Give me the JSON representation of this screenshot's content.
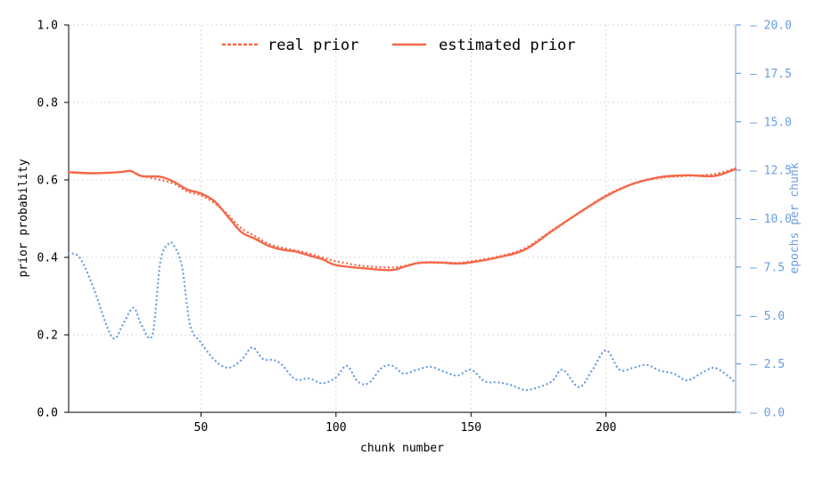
{
  "chart_data": {
    "type": "line",
    "xlabel": "chunk number",
    "ylabel": "prior probability",
    "ylabel_right": "epochs per chunk",
    "xlim": [
      1,
      248
    ],
    "ylim": [
      0.0,
      1.0
    ],
    "ylim_right": [
      0.0,
      20.0
    ],
    "x_ticks": [
      "50",
      "100",
      "150",
      "200"
    ],
    "y_ticks_left": [
      "0.0",
      "0.2",
      "0.4",
      "0.6",
      "0.8",
      "1.0"
    ],
    "y_ticks_right": [
      "0.0",
      "2.5",
      "5.0",
      "7.5",
      "10.0",
      "12.5",
      "15.0",
      "17.5",
      "20.0"
    ],
    "grid": true,
    "legend_position": "top-center",
    "colors": {
      "prior": "#f4694a",
      "epochs": "#6a9ee0"
    },
    "series": [
      {
        "name": "real prior",
        "axis": "left",
        "style": "dotted",
        "x": [
          1,
          10,
          20,
          24,
          28,
          35,
          40,
          45,
          50,
          55,
          60,
          65,
          70,
          75,
          80,
          85,
          90,
          95,
          100,
          110,
          120,
          125,
          130,
          135,
          140,
          145,
          150,
          160,
          170,
          180,
          190,
          200,
          210,
          220,
          230,
          240,
          248
        ],
        "values": [
          0.62,
          0.618,
          0.62,
          0.622,
          0.61,
          0.6,
          0.59,
          0.57,
          0.56,
          0.54,
          0.51,
          0.475,
          0.455,
          0.435,
          0.425,
          0.418,
          0.41,
          0.4,
          0.39,
          0.378,
          0.374,
          0.378,
          0.385,
          0.388,
          0.387,
          0.386,
          0.39,
          0.402,
          0.424,
          0.47,
          0.515,
          0.56,
          0.59,
          0.605,
          0.61,
          0.615,
          0.63
        ]
      },
      {
        "name": "estimated prior",
        "axis": "left",
        "style": "solid",
        "x": [
          1,
          10,
          20,
          24,
          28,
          35,
          40,
          45,
          50,
          55,
          60,
          65,
          70,
          75,
          80,
          85,
          90,
          95,
          100,
          110,
          120,
          125,
          130,
          135,
          140,
          145,
          150,
          160,
          170,
          180,
          190,
          200,
          210,
          220,
          230,
          240,
          248
        ],
        "values": [
          0.62,
          0.617,
          0.62,
          0.623,
          0.61,
          0.608,
          0.595,
          0.575,
          0.565,
          0.545,
          0.505,
          0.465,
          0.448,
          0.43,
          0.42,
          0.415,
          0.405,
          0.395,
          0.38,
          0.372,
          0.367,
          0.375,
          0.385,
          0.387,
          0.386,
          0.384,
          0.387,
          0.4,
          0.42,
          0.468,
          0.515,
          0.558,
          0.59,
          0.607,
          0.612,
          0.61,
          0.628
        ]
      },
      {
        "name": "epochs per chunk",
        "axis": "right",
        "style": "dotted",
        "x": [
          1,
          5,
          10,
          15,
          18,
          21,
          25,
          28,
          32,
          35,
          38,
          40,
          43,
          46,
          50,
          55,
          60,
          65,
          69,
          73,
          77,
          80,
          85,
          90,
          95,
          100,
          104,
          108,
          112,
          117,
          121,
          125,
          130,
          135,
          140,
          145,
          150,
          155,
          160,
          165,
          170,
          175,
          180,
          184,
          190,
          195,
          200,
          205,
          210,
          215,
          220,
          225,
          230,
          235,
          240,
          245,
          248
        ],
        "values": [
          8.2,
          8.0,
          6.5,
          4.5,
          3.8,
          4.5,
          5.4,
          4.5,
          4.0,
          7.8,
          8.7,
          8.6,
          7.5,
          4.5,
          3.6,
          2.7,
          2.3,
          2.7,
          3.35,
          2.75,
          2.7,
          2.45,
          1.7,
          1.75,
          1.5,
          1.8,
          2.4,
          1.6,
          1.5,
          2.3,
          2.4,
          2.0,
          2.2,
          2.35,
          2.1,
          1.9,
          2.2,
          1.6,
          1.55,
          1.4,
          1.15,
          1.3,
          1.6,
          2.2,
          1.3,
          2.2,
          3.2,
          2.2,
          2.3,
          2.45,
          2.15,
          2.0,
          1.65,
          2.0,
          2.3,
          1.9,
          1.5
        ]
      }
    ]
  }
}
